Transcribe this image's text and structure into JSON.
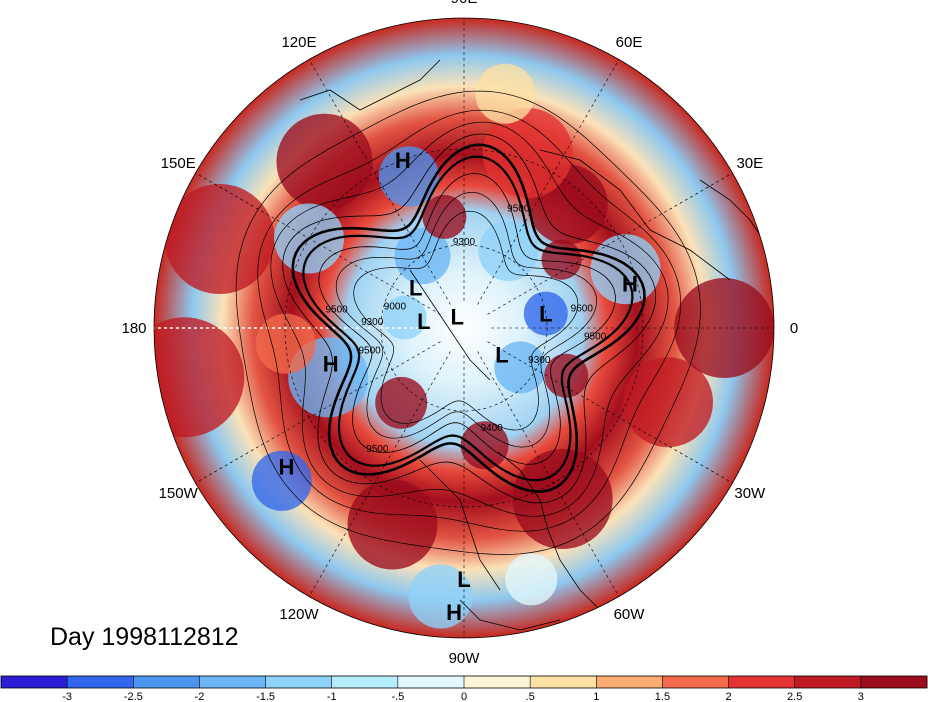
{
  "map": {
    "title": "Day 1998112812",
    "projection": "north-polar-stereographic",
    "longitude_labels": [
      {
        "label": "90E",
        "lon": 90
      },
      {
        "label": "60E",
        "lon": 60
      },
      {
        "label": "30E",
        "lon": 30
      },
      {
        "label": "0",
        "lon": 0
      },
      {
        "label": "30W",
        "lon": -30
      },
      {
        "label": "60W",
        "lon": -60
      },
      {
        "label": "90W",
        "lon": -90
      },
      {
        "label": "120W",
        "lon": -120
      },
      {
        "label": "150W",
        "lon": -150
      },
      {
        "label": "180",
        "lon": 180
      },
      {
        "label": "150E",
        "lon": 150
      },
      {
        "label": "120E",
        "lon": 120
      }
    ],
    "pressure_centers": [
      {
        "label": "H",
        "lon": 110,
        "lat": 30
      },
      {
        "label": "H",
        "lon": 15,
        "lat": 32
      },
      {
        "label": "H",
        "lon": -165,
        "lat": 42
      },
      {
        "label": "H",
        "lon": -142,
        "lat": 18
      },
      {
        "label": "H",
        "lon": -92,
        "lat": 5
      },
      {
        "label": "L",
        "lon": 140,
        "lat": 67
      },
      {
        "label": "L",
        "lon": 10,
        "lat": 60
      },
      {
        "label": "L",
        "lon": 170,
        "lat": 75
      },
      {
        "label": "L",
        "lon": 120,
        "lat": 85
      },
      {
        "label": "L",
        "lon": -35,
        "lat": 73
      },
      {
        "label": "L",
        "lon": -90,
        "lat": 12
      }
    ],
    "contour_labels": [
      {
        "text": "9500",
        "lon": 65,
        "lat": 45
      },
      {
        "text": "9300",
        "lon": 90,
        "lat": 60
      },
      {
        "text": "9600",
        "lon": 8,
        "lat": 48
      },
      {
        "text": "9500",
        "lon": -5,
        "lat": 44
      },
      {
        "text": "9300",
        "lon": -25,
        "lat": 60
      },
      {
        "text": "9400",
        "lon": -75,
        "lat": 52
      },
      {
        "text": "9500",
        "lon": -165,
        "lat": 55
      },
      {
        "text": "9300",
        "lon": 178,
        "lat": 57
      },
      {
        "text": "9500",
        "lon": 173,
        "lat": 45
      },
      {
        "text": "9500",
        "lon": -125,
        "lat": 38
      },
      {
        "text": "9000",
        "lon": 165,
        "lat": 64
      }
    ],
    "colorbar": {
      "tick_labels": [
        "-3",
        "-2.5",
        "-2",
        "-1.5",
        "-1",
        "-.5",
        "0",
        ".5",
        "1",
        "1.5",
        "2",
        "2.5",
        "3"
      ],
      "colors": [
        "#2b1ed6",
        "#3266ea",
        "#4c96f0",
        "#6cb6f5",
        "#8fd2f8",
        "#b7ecfb",
        "#e3f8fd",
        "#fdf6d6",
        "#fce0a4",
        "#f9ad73",
        "#f26a4b",
        "#e23231",
        "#bf1a22",
        "#9a0c1c"
      ]
    }
  }
}
